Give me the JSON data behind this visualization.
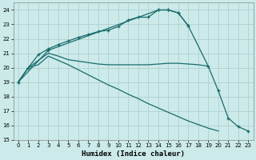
{
  "xlabel": "Humidex (Indice chaleur)",
  "bg_color": "#cceaea",
  "grid_color": "#aacccc",
  "line_color": "#1a6b6b",
  "xlim": [
    -0.5,
    23.5
  ],
  "ylim": [
    15,
    24.5
  ],
  "yticks": [
    15,
    16,
    17,
    18,
    19,
    20,
    21,
    22,
    23,
    24
  ],
  "xticks": [
    0,
    1,
    2,
    3,
    4,
    5,
    6,
    7,
    8,
    9,
    10,
    11,
    12,
    13,
    14,
    15,
    16,
    17,
    18,
    19,
    20,
    21,
    22,
    23
  ],
  "curve1_x": [
    0,
    1,
    2,
    3,
    4,
    5,
    6,
    7,
    8,
    9,
    10,
    11,
    12,
    13,
    14,
    15,
    16,
    17
  ],
  "curve1_y": [
    19.0,
    20.0,
    20.9,
    21.3,
    21.6,
    21.85,
    22.1,
    22.3,
    22.5,
    22.6,
    22.85,
    23.3,
    23.5,
    23.5,
    24.0,
    24.0,
    23.8,
    22.9
  ],
  "curve2_x": [
    0,
    1,
    2,
    3,
    4,
    5,
    6,
    7,
    8,
    9,
    10,
    11,
    12,
    13,
    14,
    15,
    16,
    17,
    18,
    19
  ],
  "curve2_y": [
    19.0,
    20.0,
    20.5,
    21.0,
    20.8,
    20.55,
    20.45,
    20.35,
    20.25,
    20.2,
    20.2,
    20.2,
    20.2,
    20.2,
    20.25,
    20.3,
    20.3,
    20.25,
    20.2,
    20.1
  ],
  "curve3_x": [
    0,
    1,
    2,
    3,
    4,
    5,
    6,
    7,
    8,
    9,
    10,
    11,
    12,
    13,
    14,
    15,
    16,
    17,
    18,
    19,
    20,
    21,
    22,
    23
  ],
  "curve3_y": [
    19.0,
    20.0,
    20.2,
    20.8,
    20.5,
    20.2,
    19.85,
    19.5,
    19.15,
    18.8,
    18.5,
    18.15,
    17.85,
    17.5,
    17.2,
    16.9,
    16.6,
    16.3,
    16.05,
    15.8,
    15.6,
    null,
    null,
    null
  ],
  "curve4_x": [
    0,
    3,
    14,
    15,
    16,
    17,
    19,
    20,
    21,
    22,
    23
  ],
  "curve4_y": [
    19.0,
    21.2,
    24.0,
    24.0,
    23.8,
    22.9,
    20.1,
    18.4,
    16.5,
    15.9,
    15.6
  ]
}
